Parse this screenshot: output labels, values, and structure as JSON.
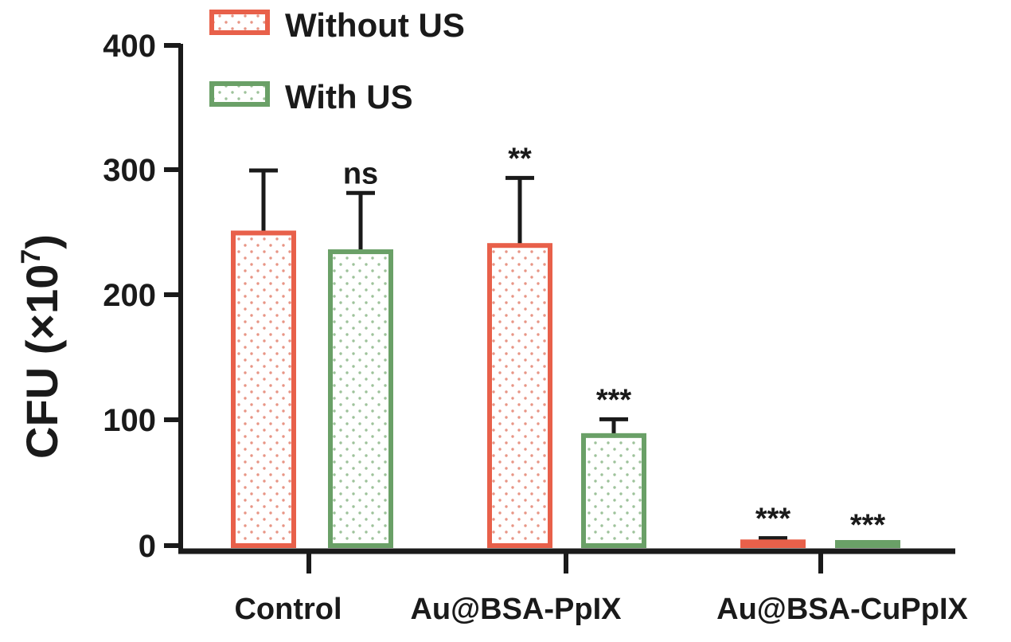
{
  "chart_data": {
    "type": "bar",
    "title": "",
    "xlabel": "",
    "ylabel": "CFU (×10",
    "ylabel_superscript": "7",
    "ylabel_close": ")",
    "categories": [
      "Control",
      "Au@BSA-PpIX",
      "Au@BSA-CuPpIX"
    ],
    "ylim": [
      0,
      400
    ],
    "yticks": [
      "0",
      "100",
      "200",
      "300",
      "400"
    ],
    "ytick_values": [
      0,
      100,
      200,
      300,
      400
    ],
    "legend_position": "top-left",
    "grid": false,
    "series": [
      {
        "name": "Without US",
        "color": "#e8604a",
        "values": [
          250,
          240,
          3
        ],
        "errors": [
          50,
          54,
          3
        ],
        "significance": [
          "",
          "**",
          "***"
        ]
      },
      {
        "name": "With US",
        "color": "#6aa067",
        "values": [
          235,
          88,
          1
        ],
        "errors": [
          47,
          13,
          0
        ],
        "significance": [
          "ns",
          "***",
          "***"
        ]
      }
    ]
  }
}
